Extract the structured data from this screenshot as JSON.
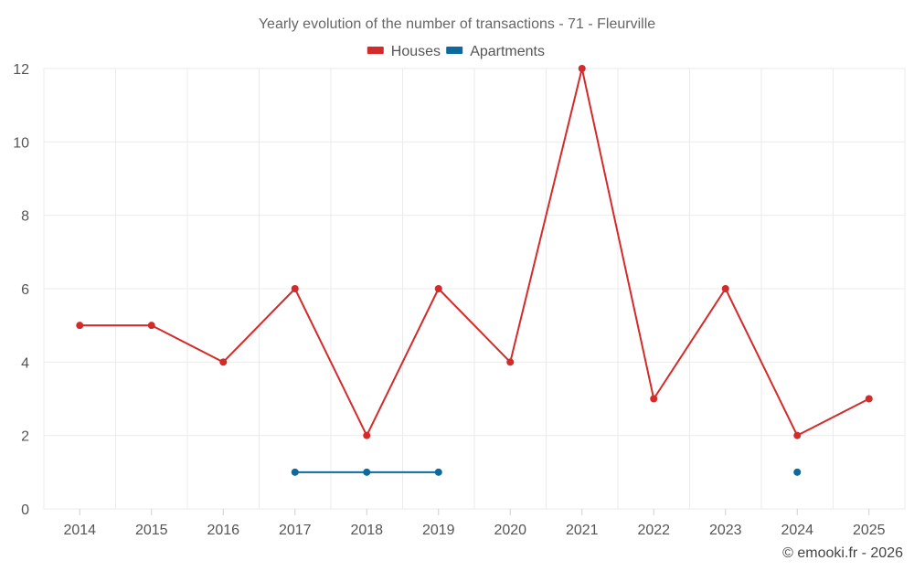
{
  "chart_data": {
    "type": "line",
    "title": "Yearly evolution of the number of transactions - 71 - Fleurville",
    "categories": [
      "2014",
      "2015",
      "2016",
      "2017",
      "2018",
      "2019",
      "2020",
      "2021",
      "2022",
      "2023",
      "2024",
      "2025"
    ],
    "ylim": [
      0,
      12
    ],
    "yticks": [
      0,
      2,
      4,
      6,
      8,
      10,
      12
    ],
    "grid": true,
    "legend_position": "top-center",
    "series": [
      {
        "name": "Houses",
        "color": "#d42a2a",
        "values": [
          5,
          5,
          4,
          6,
          2,
          6,
          4,
          12,
          3,
          6,
          2,
          3
        ]
      },
      {
        "name": "Apartments",
        "color": "#0d6a9e",
        "values": [
          null,
          null,
          null,
          1,
          1,
          1,
          null,
          null,
          null,
          null,
          1,
          null
        ]
      }
    ]
  },
  "credit": "© emooki.fr - 2026"
}
